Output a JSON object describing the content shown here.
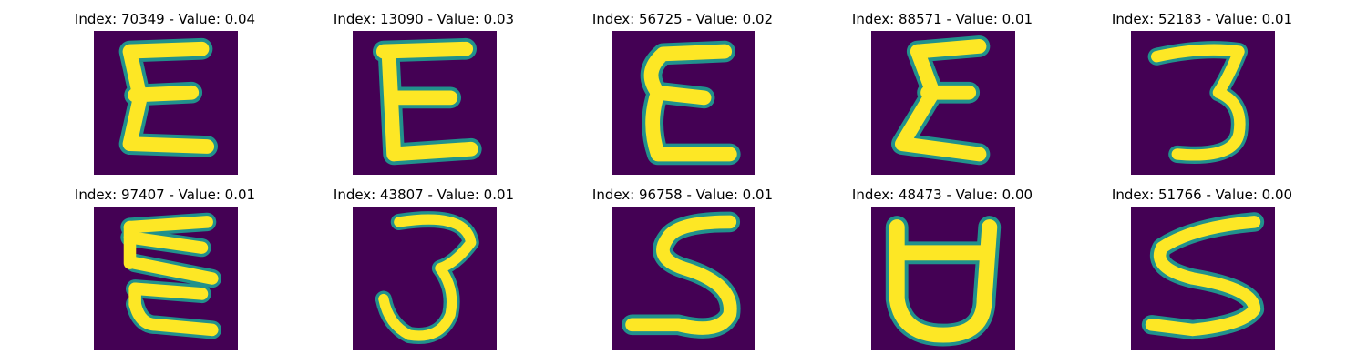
{
  "panels": [
    {
      "title": "Index: 70349 - Value: 0.04",
      "glyph": "E-style rounded"
    },
    {
      "title": "Index: 13090 - Value: 0.03",
      "glyph": "E"
    },
    {
      "title": "Index: 56725 - Value: 0.02",
      "glyph": "E-style rounded"
    },
    {
      "title": "Index: 88571 - Value: 0.01",
      "glyph": "E-style rounded"
    },
    {
      "title": "Index: 52183 - Value: 0.01",
      "glyph": "3"
    },
    {
      "title": "Index: 97407 - Value: 0.01",
      "glyph": "E-style zigzag"
    },
    {
      "title": "Index: 43807 - Value: 0.01",
      "glyph": "3"
    },
    {
      "title": "Index: 96758 - Value: 0.01",
      "glyph": "S"
    },
    {
      "title": "Index: 48473 - Value: 0.00",
      "glyph": "D-like"
    },
    {
      "title": "Index: 51766 - Value: 0.00",
      "glyph": "S"
    }
  ],
  "colors": {
    "background": "#440154",
    "mid": "#21918c",
    "stroke": "#fde725"
  }
}
